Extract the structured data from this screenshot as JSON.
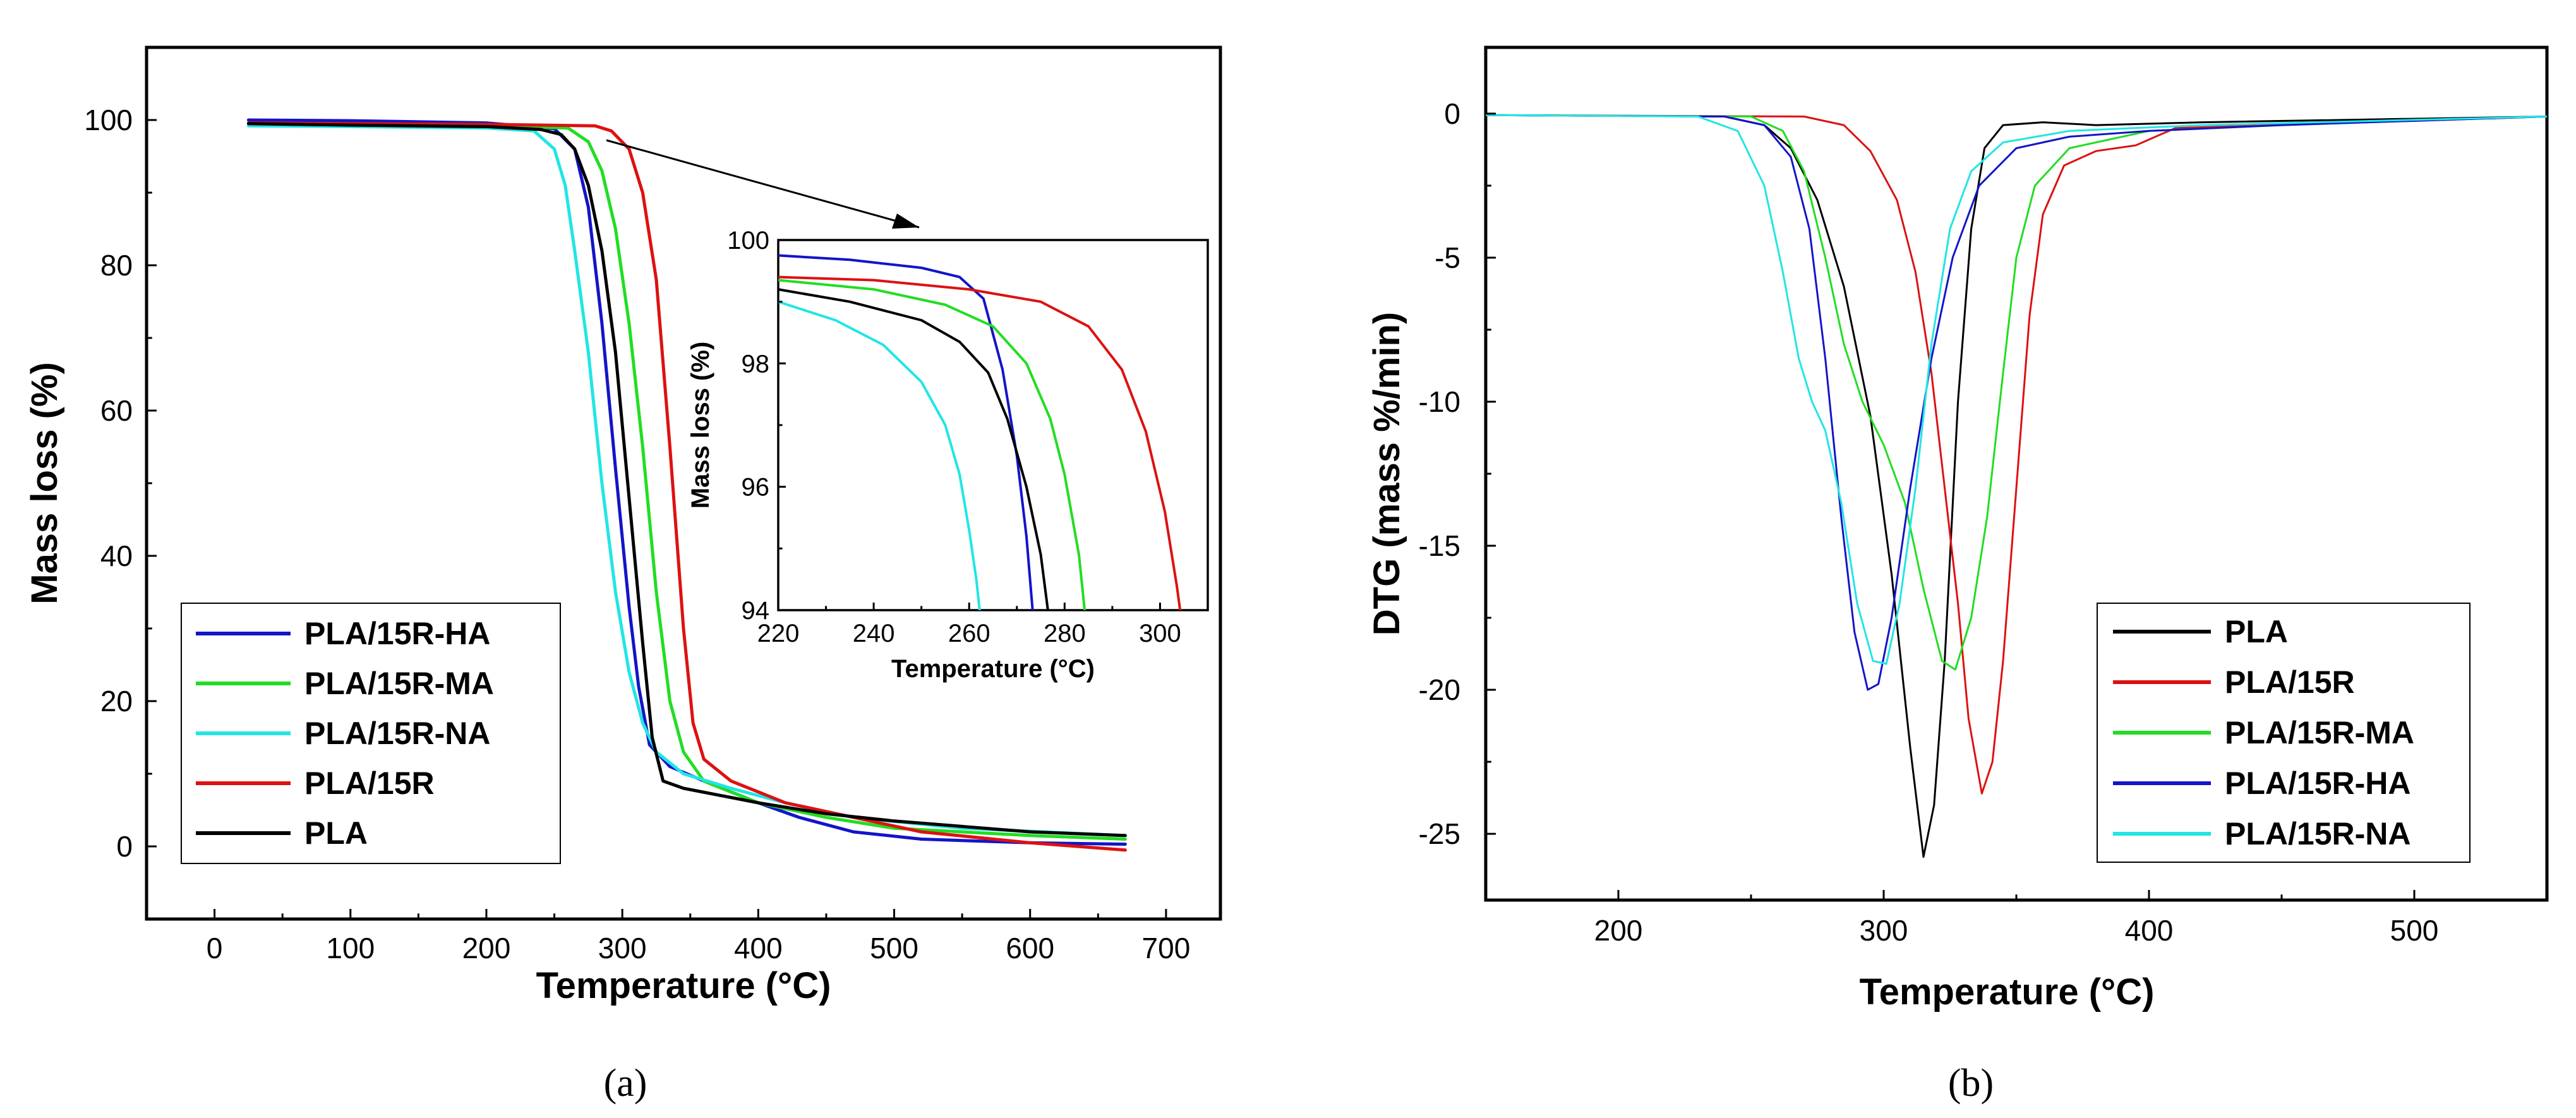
{
  "chart_data": [
    {
      "id": "a",
      "type": "line",
      "panel_label": "(a)",
      "xlabel": "Temperature (°C)",
      "ylabel": "Mass loss (%)",
      "xlim": [
        -50,
        740
      ],
      "ylim": [
        -10,
        110
      ],
      "xticks": [
        0,
        100,
        200,
        300,
        400,
        500,
        600,
        700
      ],
      "yticks": [
        0,
        20,
        40,
        60,
        80,
        100
      ],
      "legend_position": "bottom-left",
      "series": [
        {
          "name": "PLA/15R-HA",
          "color": "#1414c8",
          "points": [
            [
              25,
              100
            ],
            [
              100,
              99.9
            ],
            [
              200,
              99.6
            ],
            [
              250,
              98.8
            ],
            [
              265,
              96
            ],
            [
              275,
              88
            ],
            [
              285,
              72
            ],
            [
              295,
              52
            ],
            [
              305,
              33
            ],
            [
              312,
              22
            ],
            [
              320,
              14
            ],
            [
              335,
              11
            ],
            [
              360,
              9
            ],
            [
              400,
              6
            ],
            [
              430,
              4
            ],
            [
              470,
              2
            ],
            [
              520,
              1
            ],
            [
              600,
              0.5
            ],
            [
              670,
              0.3
            ]
          ]
        },
        {
          "name": "PLA/15R-MA",
          "color": "#22dd22",
          "points": [
            [
              25,
              99.5
            ],
            [
              100,
              99.4
            ],
            [
              200,
              99.2
            ],
            [
              260,
              98.9
            ],
            [
              275,
              97
            ],
            [
              285,
              93
            ],
            [
              295,
              85
            ],
            [
              305,
              72
            ],
            [
              315,
              55
            ],
            [
              325,
              35
            ],
            [
              335,
              20
            ],
            [
              345,
              13
            ],
            [
              360,
              9
            ],
            [
              400,
              6
            ],
            [
              450,
              4
            ],
            [
              500,
              2.5
            ],
            [
              600,
              1.5
            ],
            [
              670,
              1
            ]
          ]
        },
        {
          "name": "PLA/15R-NA",
          "color": "#22e5e5",
          "points": [
            [
              25,
              99.2
            ],
            [
              100,
              99.1
            ],
            [
              200,
              98.9
            ],
            [
              235,
              98.5
            ],
            [
              250,
              96
            ],
            [
              258,
              91
            ],
            [
              265,
              82
            ],
            [
              275,
              68
            ],
            [
              285,
              50
            ],
            [
              295,
              35
            ],
            [
              305,
              24
            ],
            [
              315,
              17
            ],
            [
              325,
              13
            ],
            [
              345,
              10
            ],
            [
              380,
              8
            ],
            [
              420,
              6
            ],
            [
              470,
              4
            ],
            [
              550,
              2.5
            ],
            [
              670,
              1.5
            ]
          ]
        },
        {
          "name": "PLA/15R",
          "color": "#dd1111",
          "points": [
            [
              25,
              99.6
            ],
            [
              100,
              99.5
            ],
            [
              200,
              99.4
            ],
            [
              280,
              99.2
            ],
            [
              292,
              98.5
            ],
            [
              305,
              96
            ],
            [
              315,
              90
            ],
            [
              325,
              78
            ],
            [
              335,
              55
            ],
            [
              345,
              30
            ],
            [
              352,
              17
            ],
            [
              360,
              12
            ],
            [
              380,
              9
            ],
            [
              420,
              6
            ],
            [
              470,
              4
            ],
            [
              520,
              2
            ],
            [
              600,
              0.5
            ],
            [
              670,
              -0.5
            ]
          ]
        },
        {
          "name": "PLA",
          "color": "#000000",
          "points": [
            [
              25,
              99.5
            ],
            [
              100,
              99.3
            ],
            [
              200,
              99.1
            ],
            [
              240,
              98.7
            ],
            [
              255,
              98
            ],
            [
              265,
              96
            ],
            [
              275,
              91
            ],
            [
              285,
              82
            ],
            [
              295,
              68
            ],
            [
              305,
              48
            ],
            [
              315,
              28
            ],
            [
              322,
              15
            ],
            [
              330,
              9
            ],
            [
              345,
              8
            ],
            [
              400,
              6
            ],
            [
              450,
              4.5
            ],
            [
              500,
              3.5
            ],
            [
              600,
              2
            ],
            [
              670,
              1.5
            ]
          ]
        }
      ]
    },
    {
      "id": "a-inset",
      "type": "line",
      "xlabel": "Temperature (°C)",
      "ylabel": "Mass loss (%)",
      "xlim": [
        220,
        310
      ],
      "ylim": [
        94,
        100
      ],
      "xticks": [
        220,
        240,
        260,
        280,
        300
      ],
      "yticks": [
        94,
        96,
        98,
        100
      ],
      "series": [
        {
          "name": "PLA/15R-HA",
          "color": "#1414c8",
          "points": [
            [
              220,
              99.75
            ],
            [
              235,
              99.68
            ],
            [
              250,
              99.55
            ],
            [
              258,
              99.4
            ],
            [
              263,
              99.05
            ],
            [
              267,
              97.9
            ],
            [
              270,
              96.5
            ],
            [
              272,
              95.2
            ],
            [
              273.3,
              94
            ]
          ]
        },
        {
          "name": "PLA/15R-MA",
          "color": "#22dd22",
          "points": [
            [
              220,
              99.35
            ],
            [
              240,
              99.2
            ],
            [
              255,
              98.95
            ],
            [
              265,
              98.6
            ],
            [
              272,
              98.0
            ],
            [
              277,
              97.1
            ],
            [
              280,
              96.2
            ],
            [
              283,
              94.9
            ],
            [
              284.2,
              94
            ]
          ]
        },
        {
          "name": "PLA/15R-NA",
          "color": "#22e5e5",
          "points": [
            [
              220,
              99.0
            ],
            [
              232,
              98.7
            ],
            [
              242,
              98.3
            ],
            [
              250,
              97.7
            ],
            [
              255,
              97.0
            ],
            [
              258,
              96.2
            ],
            [
              260,
              95.3
            ],
            [
              261.5,
              94.5
            ],
            [
              262.2,
              94
            ]
          ]
        },
        {
          "name": "PLA/15R",
          "color": "#dd1111",
          "points": [
            [
              220,
              99.4
            ],
            [
              240,
              99.35
            ],
            [
              260,
              99.2
            ],
            [
              275,
              99.0
            ],
            [
              285,
              98.6
            ],
            [
              292,
              97.9
            ],
            [
              297,
              96.9
            ],
            [
              301,
              95.6
            ],
            [
              303.5,
              94.4
            ],
            [
              304.2,
              94
            ]
          ]
        },
        {
          "name": "PLA",
          "color": "#000000",
          "points": [
            [
              220,
              99.2
            ],
            [
              235,
              99.0
            ],
            [
              250,
              98.7
            ],
            [
              258,
              98.35
            ],
            [
              264,
              97.85
            ],
            [
              268,
              97.1
            ],
            [
              272,
              96.0
            ],
            [
              275,
              94.9
            ],
            [
              276.5,
              94
            ]
          ]
        }
      ]
    },
    {
      "id": "b",
      "type": "line",
      "panel_label": "(b)",
      "xlabel": "Temperature (°C)",
      "ylabel": "DTG (mass %/min)",
      "xlim": [
        150,
        550
      ],
      "ylim": [
        -27.3,
        2.3
      ],
      "xticks": [
        200,
        300,
        400,
        500
      ],
      "yticks": [
        0,
        -5,
        -10,
        -15,
        -20,
        -25
      ],
      "legend_position": "bottom-right",
      "series": [
        {
          "name": "PLA",
          "color": "#000000",
          "points": [
            [
              150,
              -0.05
            ],
            [
              240,
              -0.1
            ],
            [
              255,
              -0.4
            ],
            [
              265,
              -1.2
            ],
            [
              275,
              -3
            ],
            [
              285,
              -6
            ],
            [
              295,
              -10.5
            ],
            [
              303,
              -16
            ],
            [
              310,
              -22
            ],
            [
              315,
              -25.8
            ],
            [
              319,
              -24
            ],
            [
              323,
              -19
            ],
            [
              328,
              -10
            ],
            [
              333,
              -4
            ],
            [
              338,
              -1.2
            ],
            [
              345,
              -0.4
            ],
            [
              360,
              -0.3
            ],
            [
              380,
              -0.4
            ],
            [
              420,
              -0.3
            ],
            [
              550,
              -0.1
            ]
          ]
        },
        {
          "name": "PLA/15R",
          "color": "#dd1111",
          "points": [
            [
              150,
              -0.05
            ],
            [
              270,
              -0.1
            ],
            [
              285,
              -0.4
            ],
            [
              295,
              -1.3
            ],
            [
              305,
              -3
            ],
            [
              312,
              -5.5
            ],
            [
              318,
              -9
            ],
            [
              323,
              -13
            ],
            [
              328,
              -17
            ],
            [
              332,
              -21
            ],
            [
              337,
              -23.6
            ],
            [
              341,
              -22.5
            ],
            [
              345,
              -19
            ],
            [
              350,
              -13
            ],
            [
              355,
              -7
            ],
            [
              360,
              -3.5
            ],
            [
              368,
              -1.8
            ],
            [
              380,
              -1.3
            ],
            [
              395,
              -1.1
            ],
            [
              410,
              -0.5
            ],
            [
              550,
              -0.1
            ]
          ]
        },
        {
          "name": "PLA/15R-MA",
          "color": "#22dd22",
          "points": [
            [
              150,
              -0.05
            ],
            [
              250,
              -0.1
            ],
            [
              262,
              -0.6
            ],
            [
              270,
              -2
            ],
            [
              278,
              -5
            ],
            [
              285,
              -8
            ],
            [
              292,
              -10
            ],
            [
              300,
              -11.5
            ],
            [
              308,
              -13.5
            ],
            [
              315,
              -16.5
            ],
            [
              322,
              -19
            ],
            [
              327,
              -19.3
            ],
            [
              333,
              -17.5
            ],
            [
              339,
              -14
            ],
            [
              345,
              -9
            ],
            [
              350,
              -5
            ],
            [
              357,
              -2.5
            ],
            [
              370,
              -1.2
            ],
            [
              400,
              -0.6
            ],
            [
              450,
              -0.4
            ],
            [
              550,
              -0.1
            ]
          ]
        },
        {
          "name": "PLA/15R-HA",
          "color": "#1414c8",
          "points": [
            [
              150,
              -0.05
            ],
            [
              240,
              -0.1
            ],
            [
              255,
              -0.4
            ],
            [
              265,
              -1.5
            ],
            [
              272,
              -4
            ],
            [
              278,
              -8.5
            ],
            [
              284,
              -14
            ],
            [
              289,
              -18
            ],
            [
              294,
              -20
            ],
            [
              298,
              -19.8
            ],
            [
              303,
              -17.5
            ],
            [
              310,
              -13
            ],
            [
              318,
              -8.5
            ],
            [
              326,
              -5
            ],
            [
              336,
              -2.5
            ],
            [
              350,
              -1.2
            ],
            [
              370,
              -0.8
            ],
            [
              400,
              -0.6
            ],
            [
              450,
              -0.4
            ],
            [
              550,
              -0.1
            ]
          ]
        },
        {
          "name": "PLA/15R-NA",
          "color": "#22e5e5",
          "points": [
            [
              150,
              -0.05
            ],
            [
              230,
              -0.1
            ],
            [
              245,
              -0.6
            ],
            [
              255,
              -2.5
            ],
            [
              262,
              -5.5
            ],
            [
              268,
              -8.5
            ],
            [
              273,
              -10
            ],
            [
              278,
              -11
            ],
            [
              284,
              -13.5
            ],
            [
              290,
              -17
            ],
            [
              296,
              -19
            ],
            [
              301,
              -19.1
            ],
            [
              306,
              -17
            ],
            [
              312,
              -13
            ],
            [
              318,
              -8
            ],
            [
              325,
              -4
            ],
            [
              333,
              -2
            ],
            [
              345,
              -1
            ],
            [
              370,
              -0.6
            ],
            [
              420,
              -0.4
            ],
            [
              550,
              -0.1
            ]
          ]
        }
      ]
    }
  ]
}
